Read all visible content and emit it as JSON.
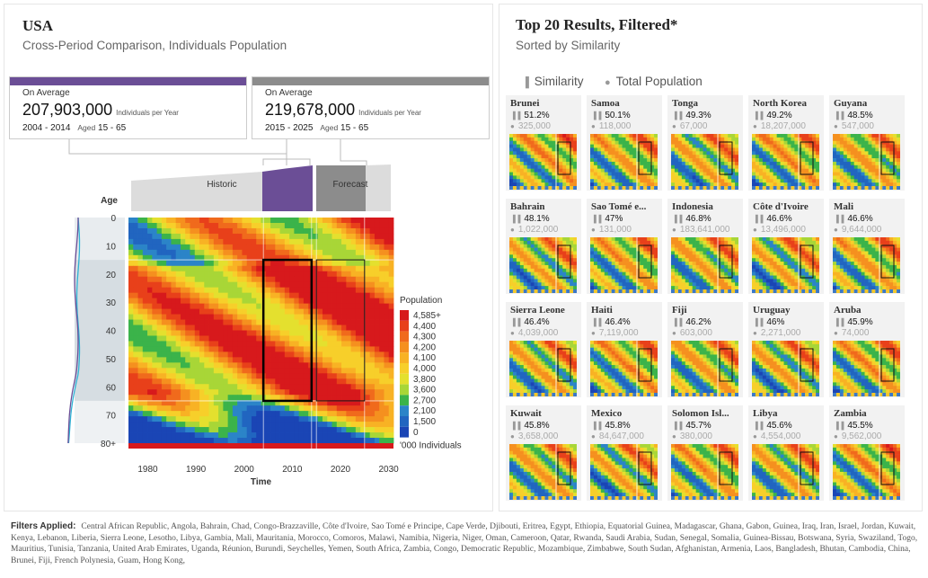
{
  "country": "USA",
  "subtitle": "Cross-Period Comparison, Individuals Population",
  "periods": [
    {
      "label": "On Average",
      "value": "207,903,000",
      "unit": "Individuals per Year",
      "range": "2004 - 2014",
      "aged_label": "Aged",
      "aged": "15 - 65",
      "color": "#6b4e96"
    },
    {
      "label": "On Average",
      "value": "219,678,000",
      "unit": "Individuals per Year",
      "range": "2015 - 2025",
      "aged_label": "Aged",
      "aged": "15 - 65",
      "color": "#8c8c8c"
    }
  ],
  "header_tabs": {
    "historic": "Historic",
    "forecast": "Forecast"
  },
  "chart_data": {
    "type": "heatmap",
    "xlabel": "Time",
    "ylabel": "Age",
    "x_ticks": [
      "1980",
      "1990",
      "2000",
      "2010",
      "2020",
      "2030"
    ],
    "y_ticks": [
      "0",
      "10",
      "20",
      "30",
      "40",
      "50",
      "60",
      "70",
      "80+"
    ],
    "xlim": [
      1976,
      2031
    ],
    "ylim": [
      0,
      80
    ],
    "selections": [
      {
        "start": 2004,
        "end": 2014,
        "age_from": 15,
        "age_to": 65
      },
      {
        "start": 2015,
        "end": 2025,
        "age_from": 15,
        "age_to": 65
      }
    ],
    "legend": {
      "title": "Population",
      "labels": [
        "4,585+",
        "4,400",
        "4,300",
        "4,200",
        "4,100",
        "4,000",
        "3,800",
        "3,600",
        "2,700",
        "2,100",
        "1,500",
        "0"
      ],
      "colors": [
        "#d7191c",
        "#e8401a",
        "#f06a1c",
        "#f5901f",
        "#f8b224",
        "#f7cf2a",
        "#e4e02e",
        "#a8d637",
        "#3bb34a",
        "#2b84c8",
        "#2165c0",
        "#1a45b5"
      ],
      "unit": "'000 Individuals"
    }
  },
  "results": {
    "title": "Top 20 Results, Filtered*",
    "subtitle": "Sorted by Similarity",
    "tabs": [
      "Similarity",
      "Total Population"
    ],
    "items": [
      {
        "name": "Brunei",
        "similarity": "51.2%",
        "population": "325,000"
      },
      {
        "name": "Samoa",
        "similarity": "50.1%",
        "population": "118,000"
      },
      {
        "name": "Tonga",
        "similarity": "49.3%",
        "population": "67,000"
      },
      {
        "name": "North Korea",
        "similarity": "49.2%",
        "population": "18,207,000"
      },
      {
        "name": "Guyana",
        "similarity": "48.5%",
        "population": "547,000"
      },
      {
        "name": "Bahrain",
        "similarity": "48.1%",
        "population": "1,022,000"
      },
      {
        "name": "Sao Tomé e...",
        "similarity": "47%",
        "population": "131,000"
      },
      {
        "name": "Indonesia",
        "similarity": "46.8%",
        "population": "183,641,000"
      },
      {
        "name": "Côte d'Ivoire",
        "similarity": "46.6%",
        "population": "13,496,000"
      },
      {
        "name": "Mali",
        "similarity": "46.6%",
        "population": "9,644,000"
      },
      {
        "name": "Sierra Leone",
        "similarity": "46.4%",
        "population": "4,039,000"
      },
      {
        "name": "Haiti",
        "similarity": "46.4%",
        "population": "7,119,000"
      },
      {
        "name": "Fiji",
        "similarity": "46.2%",
        "population": "603,000"
      },
      {
        "name": "Uruguay",
        "similarity": "46%",
        "population": "2,271,000"
      },
      {
        "name": "Aruba",
        "similarity": "45.9%",
        "population": "74,000"
      },
      {
        "name": "Kuwait",
        "similarity": "45.8%",
        "population": "3,658,000"
      },
      {
        "name": "Mexico",
        "similarity": "45.8%",
        "population": "84,647,000"
      },
      {
        "name": "Solomon Isl...",
        "similarity": "45.7%",
        "population": "380,000"
      },
      {
        "name": "Libya",
        "similarity": "45.6%",
        "population": "4,554,000"
      },
      {
        "name": "Zambia",
        "similarity": "45.5%",
        "population": "9,562,000"
      }
    ]
  },
  "filters": {
    "label": "Filters Applied:",
    "text": "Central African Republic, Angola, Bahrain, Chad, Congo-Brazzaville, Côte d'Ivoire, Sao Tomé e Principe, Cape Verde, Djibouti, Eritrea, Egypt, Ethiopia, Equatorial Guinea, Madagascar, Ghana, Gabon, Guinea, Iraq, Iran, Israel, Jordan, Kuwait, Kenya, Lebanon, Liberia, Sierra Leone, Lesotho, Libya, Gambia, Mali, Mauritania, Morocco, Comoros, Malawi, Namibia, Nigeria, Niger, Oman, Cameroon, Qatar, Rwanda, Saudi Arabia, Sudan, Senegal, Somalia, Guinea-Bissau, Botswana, Syria, Swaziland, Togo, Mauritius, Tunisia, Tanzania, United Arab Emirates, Uganda, Réunion, Burundi, Seychelles, Yemen, South Africa, Zambia, Congo, Democratic Republic, Mozambique, Zimbabwe, South Sudan, Afghanistan, Armenia, Laos, Bangladesh, Bhutan, Cambodia, China, Brunei, Fiji, French Polynesia, Guam, Hong Kong,"
  }
}
